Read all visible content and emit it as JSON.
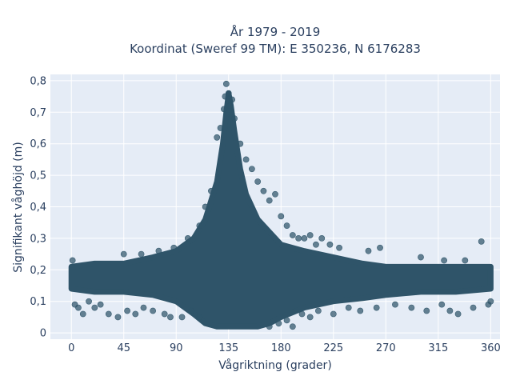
{
  "chart_data": {
    "type": "scatter",
    "title_line1": "År 1979 - 2019",
    "title_line2": "Koordinat (Sweref 99 TM): E 350236, N 6176283",
    "xlabel": "Vågriktning (grader)",
    "ylabel": "Signifikant våghöjd (m)",
    "xlim": [
      -18,
      368
    ],
    "ylim": [
      -0.02,
      0.82
    ],
    "x_ticks": [
      0,
      45,
      90,
      135,
      180,
      225,
      270,
      315,
      360
    ],
    "x_tick_labels": [
      "0",
      "45",
      "90",
      "135",
      "180",
      "225",
      "270",
      "315",
      "360"
    ],
    "y_ticks": [
      0,
      0.1,
      0.2,
      0.3,
      0.4,
      0.5,
      0.6,
      0.7,
      0.8
    ],
    "y_tick_labels": [
      "0",
      "0,1",
      "0,2",
      "0,3",
      "0,4",
      "0,5",
      "0,6",
      "0,7",
      "0,8"
    ],
    "grid": true,
    "marker_color": "#2f5469",
    "plot_background": "#e5ecf6",
    "envelope": {
      "x": [
        0,
        20,
        45,
        70,
        90,
        105,
        115,
        125,
        130,
        133,
        135,
        137,
        140,
        145,
        150,
        160,
        170,
        180,
        200,
        225,
        250,
        270,
        300,
        330,
        360
      ],
      "y_upper": [
        0.21,
        0.22,
        0.22,
        0.24,
        0.26,
        0.3,
        0.36,
        0.48,
        0.6,
        0.7,
        0.76,
        0.72,
        0.64,
        0.52,
        0.44,
        0.36,
        0.32,
        0.28,
        0.26,
        0.24,
        0.22,
        0.21,
        0.21,
        0.21,
        0.21
      ],
      "y_lower": [
        0.14,
        0.13,
        0.13,
        0.12,
        0.1,
        0.06,
        0.03,
        0.02,
        0.02,
        0.02,
        0.02,
        0.02,
        0.02,
        0.02,
        0.02,
        0.02,
        0.03,
        0.05,
        0.08,
        0.1,
        0.11,
        0.12,
        0.13,
        0.13,
        0.14
      ]
    },
    "points": [
      {
        "x": 133,
        "y": 0.79
      },
      {
        "x": 132,
        "y": 0.75
      },
      {
        "x": 135,
        "y": 0.76
      },
      {
        "x": 138,
        "y": 0.74
      },
      {
        "x": 136,
        "y": 0.72
      },
      {
        "x": 131,
        "y": 0.71
      },
      {
        "x": 140,
        "y": 0.68
      },
      {
        "x": 128,
        "y": 0.65
      },
      {
        "x": 145,
        "y": 0.6
      },
      {
        "x": 125,
        "y": 0.62
      },
      {
        "x": 150,
        "y": 0.55
      },
      {
        "x": 155,
        "y": 0.52
      },
      {
        "x": 160,
        "y": 0.48
      },
      {
        "x": 165,
        "y": 0.45
      },
      {
        "x": 175,
        "y": 0.44
      },
      {
        "x": 170,
        "y": 0.42
      },
      {
        "x": 180,
        "y": 0.37
      },
      {
        "x": 185,
        "y": 0.34
      },
      {
        "x": 190,
        "y": 0.31
      },
      {
        "x": 195,
        "y": 0.3
      },
      {
        "x": 200,
        "y": 0.3
      },
      {
        "x": 205,
        "y": 0.31
      },
      {
        "x": 210,
        "y": 0.28
      },
      {
        "x": 215,
        "y": 0.3
      },
      {
        "x": 222,
        "y": 0.28
      },
      {
        "x": 230,
        "y": 0.27
      },
      {
        "x": 255,
        "y": 0.26
      },
      {
        "x": 265,
        "y": 0.27
      },
      {
        "x": 352,
        "y": 0.29
      },
      {
        "x": 300,
        "y": 0.24
      },
      {
        "x": 320,
        "y": 0.23
      },
      {
        "x": 338,
        "y": 0.23
      },
      {
        "x": 1,
        "y": 0.23
      },
      {
        "x": 3,
        "y": 0.09
      },
      {
        "x": 6,
        "y": 0.08
      },
      {
        "x": 10,
        "y": 0.06
      },
      {
        "x": 15,
        "y": 0.1
      },
      {
        "x": 20,
        "y": 0.08
      },
      {
        "x": 25,
        "y": 0.09
      },
      {
        "x": 32,
        "y": 0.06
      },
      {
        "x": 40,
        "y": 0.05
      },
      {
        "x": 48,
        "y": 0.07
      },
      {
        "x": 55,
        "y": 0.06
      },
      {
        "x": 62,
        "y": 0.08
      },
      {
        "x": 70,
        "y": 0.07
      },
      {
        "x": 80,
        "y": 0.06
      },
      {
        "x": 85,
        "y": 0.05
      },
      {
        "x": 95,
        "y": 0.05
      },
      {
        "x": 103,
        "y": 0.07
      },
      {
        "x": 110,
        "y": 0.05
      },
      {
        "x": 170,
        "y": 0.02
      },
      {
        "x": 178,
        "y": 0.03
      },
      {
        "x": 185,
        "y": 0.04
      },
      {
        "x": 190,
        "y": 0.02
      },
      {
        "x": 198,
        "y": 0.06
      },
      {
        "x": 205,
        "y": 0.05
      },
      {
        "x": 212,
        "y": 0.07
      },
      {
        "x": 225,
        "y": 0.06
      },
      {
        "x": 238,
        "y": 0.08
      },
      {
        "x": 248,
        "y": 0.07
      },
      {
        "x": 262,
        "y": 0.08
      },
      {
        "x": 278,
        "y": 0.09
      },
      {
        "x": 292,
        "y": 0.08
      },
      {
        "x": 305,
        "y": 0.07
      },
      {
        "x": 318,
        "y": 0.09
      },
      {
        "x": 325,
        "y": 0.07
      },
      {
        "x": 332,
        "y": 0.06
      },
      {
        "x": 345,
        "y": 0.08
      },
      {
        "x": 358,
        "y": 0.09
      },
      {
        "x": 360,
        "y": 0.1
      },
      {
        "x": 45,
        "y": 0.25
      },
      {
        "x": 60,
        "y": 0.25
      },
      {
        "x": 75,
        "y": 0.26
      },
      {
        "x": 88,
        "y": 0.27
      },
      {
        "x": 100,
        "y": 0.3
      },
      {
        "x": 110,
        "y": 0.34
      },
      {
        "x": 115,
        "y": 0.4
      },
      {
        "x": 120,
        "y": 0.45
      }
    ]
  }
}
